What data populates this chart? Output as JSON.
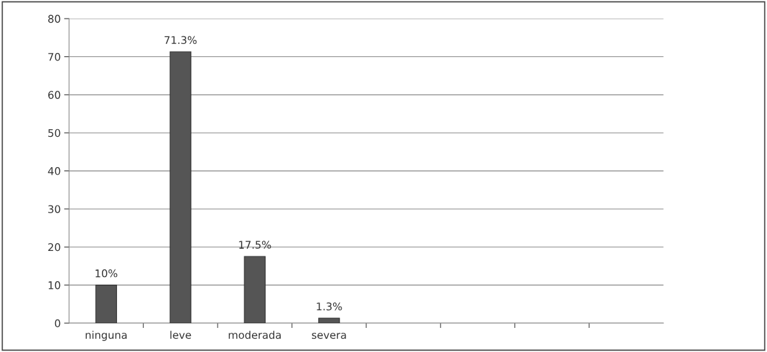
{
  "chart_data": {
    "type": "bar",
    "categories": [
      "ninguna",
      "leve",
      "moderada",
      "severa",
      null,
      null,
      null,
      null
    ],
    "values": [
      10,
      71.3,
      17.5,
      1.3,
      null,
      null,
      null,
      null
    ],
    "value_labels": [
      "10%",
      "71.3%",
      "17.5%",
      "1.3%",
      null,
      null,
      null,
      null
    ],
    "color": "#555555",
    "ylim": [
      0,
      80
    ],
    "yticks": [
      0,
      10,
      20,
      30,
      40,
      50,
      60,
      70,
      80
    ],
    "grid": "y",
    "legend": false
  }
}
